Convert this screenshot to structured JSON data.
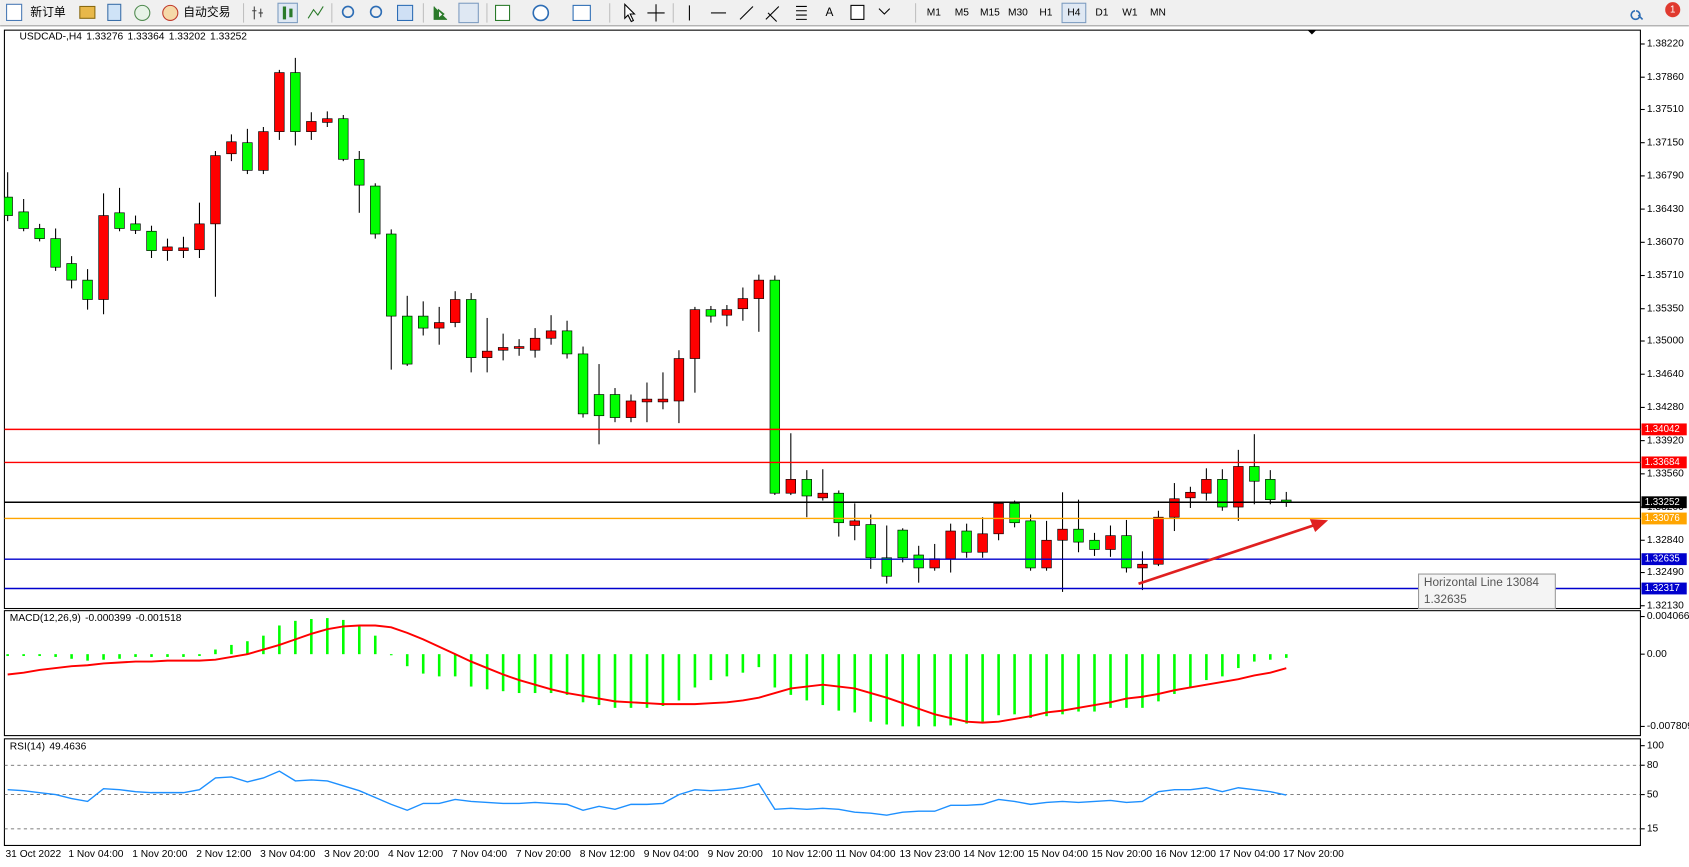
{
  "toolbar": {
    "new_order": "新订单",
    "auto_trading": "自动交易",
    "text_tool": "A",
    "periods": [
      "M1",
      "M5",
      "M15",
      "M30",
      "H1",
      "H4",
      "D1",
      "W1",
      "MN"
    ],
    "active_period": 5,
    "notification_count": 1
  },
  "tooltip": {
    "title": "Horizontal Line 13084",
    "value": 1.32635
  },
  "chart_data": [
    {
      "type": "candlestick",
      "title": "USDCAD-,H4",
      "header_values": [
        1.33276,
        1.33364,
        1.33202,
        1.33252
      ],
      "up_color": "#ff0000",
      "down_color": "#00ff00",
      "open": [
        1.3656,
        1.364,
        1.3622,
        1.3611,
        1.3584,
        1.3566,
        1.3545,
        1.3639,
        1.3627,
        1.3619,
        1.3598,
        1.3598,
        1.3599,
        1.3627,
        1.3703,
        1.3715,
        1.3685,
        1.3727,
        1.3791,
        1.3727,
        1.3737,
        1.3741,
        1.3697,
        1.3668,
        1.3616,
        1.3527,
        1.3527,
        1.3514,
        1.352,
        1.3545,
        1.3482,
        1.349,
        1.3492,
        1.349,
        1.3503,
        1.3511,
        1.3486,
        1.3442,
        1.3442,
        1.3417,
        1.3434,
        1.3434,
        1.3435,
        1.3481,
        1.3534,
        1.3528,
        1.3535,
        1.3546,
        1.3566,
        1.3335,
        1.335,
        1.333,
        1.3335,
        1.33,
        1.3301,
        1.3265,
        1.3295,
        1.3268,
        1.3254,
        1.3264,
        1.3294,
        1.3271,
        1.3291,
        1.3324,
        1.3305,
        1.3254,
        1.3284,
        1.3296,
        1.3284,
        1.3274,
        1.3289,
        1.3254,
        1.3258,
        1.3309,
        1.333,
        1.3335,
        1.335,
        1.332,
        1.3364,
        1.335,
        1.33276
      ],
      "high": [
        1.3683,
        1.3654,
        1.3627,
        1.3622,
        1.3592,
        1.3578,
        1.366,
        1.3666,
        1.3636,
        1.3625,
        1.3611,
        1.3613,
        1.365,
        1.3706,
        1.3724,
        1.373,
        1.3732,
        1.3794,
        1.3807,
        1.3748,
        1.3749,
        1.3745,
        1.3706,
        1.3671,
        1.3621,
        1.3549,
        1.3543,
        1.3537,
        1.3554,
        1.3552,
        1.3525,
        1.3508,
        1.3502,
        1.3514,
        1.3528,
        1.3522,
        1.3494,
        1.3475,
        1.3449,
        1.3442,
        1.3455,
        1.3466,
        1.349,
        1.3537,
        1.3538,
        1.3539,
        1.3558,
        1.3572,
        1.3571,
        1.34,
        1.336,
        1.3361,
        1.3338,
        1.3324,
        1.3312,
        1.33,
        1.3297,
        1.3278,
        1.328,
        1.3302,
        1.3302,
        1.3309,
        1.3326,
        1.3327,
        1.3312,
        1.3305,
        1.3336,
        1.3328,
        1.3292,
        1.33,
        1.3306,
        1.3272,
        1.3316,
        1.3346,
        1.3342,
        1.3362,
        1.3361,
        1.3382,
        1.3399,
        1.336,
        1.33364
      ],
      "low": [
        1.363,
        1.3619,
        1.3608,
        1.3576,
        1.3557,
        1.3534,
        1.3529,
        1.3619,
        1.3616,
        1.359,
        1.3587,
        1.359,
        1.359,
        1.3548,
        1.3695,
        1.3681,
        1.3681,
        1.3718,
        1.3712,
        1.3718,
        1.3732,
        1.3695,
        1.3639,
        1.3611,
        1.3469,
        1.3473,
        1.3506,
        1.3496,
        1.3515,
        1.3466,
        1.3466,
        1.3479,
        1.3484,
        1.3482,
        1.3496,
        1.3481,
        1.3417,
        1.3388,
        1.3412,
        1.3412,
        1.3412,
        1.3426,
        1.3411,
        1.3444,
        1.352,
        1.3516,
        1.3522,
        1.351,
        1.3333,
        1.3333,
        1.3309,
        1.3327,
        1.3288,
        1.3284,
        1.3253,
        1.3237,
        1.326,
        1.3238,
        1.3251,
        1.3249,
        1.3265,
        1.3265,
        1.3284,
        1.3298,
        1.3251,
        1.3251,
        1.3228,
        1.3271,
        1.3267,
        1.3266,
        1.3249,
        1.323,
        1.3256,
        1.3294,
        1.3319,
        1.3327,
        1.3316,
        1.3305,
        1.3323,
        1.3323,
        1.33202
      ],
      "close": [
        1.3636,
        1.3622,
        1.3611,
        1.358,
        1.3566,
        1.3545,
        1.3636,
        1.3622,
        1.362,
        1.3598,
        1.3602,
        1.3601,
        1.3627,
        1.3701,
        1.3716,
        1.3685,
        1.3727,
        1.3791,
        1.3727,
        1.3738,
        1.3741,
        1.3697,
        1.3669,
        1.3616,
        1.3527,
        1.3475,
        1.3514,
        1.352,
        1.3545,
        1.3482,
        1.3489,
        1.3493,
        1.3494,
        1.3503,
        1.3511,
        1.3486,
        1.3421,
        1.3419,
        1.3417,
        1.3435,
        1.3437,
        1.3437,
        1.3481,
        1.3534,
        1.3527,
        1.3534,
        1.3546,
        1.3566,
        1.3335,
        1.335,
        1.3332,
        1.3335,
        1.3303,
        1.3305,
        1.3265,
        1.3245,
        1.3265,
        1.3254,
        1.3264,
        1.3294,
        1.3271,
        1.3291,
        1.3324,
        1.3303,
        1.3254,
        1.3284,
        1.3296,
        1.3282,
        1.3274,
        1.3289,
        1.3254,
        1.3258,
        1.3309,
        1.3329,
        1.3336,
        1.335,
        1.332,
        1.3364,
        1.3348,
        1.3328,
        1.33252
      ],
      "ylim": [
        1.321,
        1.3837
      ],
      "yticks": [
        {
          "value": 1.3822,
          "label": "1.38220"
        },
        {
          "value": 1.3786,
          "label": "1.37860"
        },
        {
          "value": 1.3751,
          "label": "1.37510"
        },
        {
          "value": 1.3715,
          "label": "1.37150"
        },
        {
          "value": 1.3679,
          "label": "1.36790"
        },
        {
          "value": 1.3643,
          "label": "1.36430"
        },
        {
          "value": 1.3607,
          "label": "1.36070"
        },
        {
          "value": 1.3571,
          "label": "1.35710"
        },
        {
          "value": 1.3535,
          "label": "1.35350"
        },
        {
          "value": 1.35,
          "label": "1.35000"
        },
        {
          "value": 1.3464,
          "label": "1.34640"
        },
        {
          "value": 1.3428,
          "label": "1.34280"
        },
        {
          "value": 1.3392,
          "label": "1.33920"
        },
        {
          "value": 1.3356,
          "label": "1.33560"
        },
        {
          "value": 1.332,
          "label": "1.33200"
        },
        {
          "value": 1.3284,
          "label": "1.32840"
        },
        {
          "value": 1.3249,
          "label": "1.32490"
        },
        {
          "value": 1.3213,
          "label": "1.32130"
        }
      ],
      "hlines": [
        {
          "value": 1.34042,
          "color": "#ff0000"
        },
        {
          "value": 1.33684,
          "color": "#ff0000"
        },
        {
          "value": 1.33076,
          "color": "#ffa500"
        },
        {
          "value": 1.32635,
          "color": "#0000cd"
        },
        {
          "value": 1.32317,
          "color": "#0000cd"
        }
      ],
      "bid": {
        "value": 1.33252,
        "color": "#000000"
      },
      "x_labels": [
        "31 Oct 2022",
        "1 Nov 04:00",
        "1 Nov 20:00",
        "2 Nov 12:00",
        "3 Nov 04:00",
        "3 Nov 20:00",
        "4 Nov 12:00",
        "7 Nov 04:00",
        "7 Nov 20:00",
        "8 Nov 12:00",
        "9 Nov 04:00",
        "9 Nov 20:00",
        "10 Nov 12:00",
        "11 Nov 04:00",
        "13 Nov 23:00",
        "14 Nov 12:00",
        "15 Nov 04:00",
        "15 Nov 20:00",
        "16 Nov 12:00",
        "17 Nov 04:00",
        "17 Nov 20:00"
      ]
    },
    {
      "type": "macd",
      "title": "MACD(12,26,9)",
      "header_values": [
        -0.000399,
        -0.001518
      ],
      "color": "#00ff00",
      "signal_color": "#ff0000",
      "values": [
        -0.0002,
        -0.0002,
        -0.0002,
        -0.0003,
        -0.0005,
        -0.0007,
        -0.0006,
        -0.0005,
        -0.0003,
        -0.0003,
        -0.0003,
        -0.0003,
        -0.0002,
        0.0005,
        0.001,
        0.0014,
        0.002,
        0.0031,
        0.0036,
        0.0038,
        0.0039,
        0.0037,
        0.0031,
        0.002,
        0,
        -0.0013,
        -0.0021,
        -0.0024,
        -0.0024,
        -0.0035,
        -0.0038,
        -0.004,
        -0.0042,
        -0.0042,
        -0.0042,
        -0.0044,
        -0.0052,
        -0.0055,
        -0.0058,
        -0.0058,
        -0.0058,
        -0.0056,
        -0.005,
        -0.0036,
        -0.0028,
        -0.0024,
        -0.002,
        -0.0014,
        -0.0036,
        -0.0044,
        -0.005,
        -0.0055,
        -0.0061,
        -0.0063,
        -0.0073,
        -0.0076,
        -0.0078,
        -0.0078,
        -0.0078,
        -0.0077,
        -0.0075,
        -0.0073,
        -0.0066,
        -0.0065,
        -0.0069,
        -0.0067,
        -0.0065,
        -0.0062,
        -0.0062,
        -0.0058,
        -0.0058,
        -0.0058,
        -0.0051,
        -0.0043,
        -0.0036,
        -0.0028,
        -0.0024,
        -0.0015,
        -0.0008,
        -0.0006,
        -0.000399
      ],
      "signal": [
        -0.0022,
        -0.002,
        -0.0017,
        -0.0015,
        -0.0013,
        -0.0012,
        -0.001,
        -0.0009,
        -0.0008,
        -0.0008,
        -0.0007,
        -0.0007,
        -0.0007,
        -0.0006,
        -0.0003,
        0,
        0.0005,
        0.001,
        0.0016,
        0.0022,
        0.0027,
        0.003,
        0.0031,
        0.0031,
        0.0029,
        0.0023,
        0.0016,
        0.0008,
        0,
        -0.0008,
        -0.0015,
        -0.0022,
        -0.0028,
        -0.0033,
        -0.0038,
        -0.0042,
        -0.0045,
        -0.0048,
        -0.0051,
        -0.0052,
        -0.0053,
        -0.0054,
        -0.0054,
        -0.0054,
        -0.0053,
        -0.0052,
        -0.005,
        -0.0047,
        -0.0042,
        -0.0037,
        -0.0035,
        -0.0033,
        -0.0035,
        -0.0037,
        -0.0042,
        -0.0047,
        -0.0053,
        -0.0059,
        -0.0065,
        -0.0069,
        -0.0073,
        -0.0074,
        -0.0073,
        -0.007,
        -0.0067,
        -0.0063,
        -0.0061,
        -0.0058,
        -0.0055,
        -0.0052,
        -0.0048,
        -0.0046,
        -0.0043,
        -0.0039,
        -0.0036,
        -0.0033,
        -0.003,
        -0.0027,
        -0.0023,
        -0.002,
        -0.001518
      ],
      "ylim": [
        -0.0088,
        0.0047
      ],
      "yticks": [
        0.004066,
        {
          "value": 0,
          "label": "0.00"
        },
        -0.007809
      ]
    },
    {
      "type": "line",
      "title": "RSI(14)",
      "header_values": [
        49.4636
      ],
      "color": "#1e90ff",
      "values": [
        55,
        54,
        52,
        50,
        46,
        43,
        56,
        55,
        53,
        52,
        52,
        52,
        55,
        67,
        68,
        63,
        67,
        74,
        64,
        65,
        64,
        59,
        54,
        47,
        40,
        34,
        41,
        41,
        45,
        43,
        42,
        41,
        41,
        42,
        41,
        40,
        34,
        38,
        35,
        40,
        40,
        41,
        50,
        55,
        54,
        55,
        57,
        61,
        35,
        36,
        35,
        36,
        35,
        32,
        31,
        29,
        32,
        33,
        33,
        39,
        39,
        40,
        45,
        43,
        40,
        42,
        43,
        42,
        43,
        44,
        42,
        43,
        53,
        55,
        55,
        57,
        53,
        57,
        55,
        53,
        49.4636
      ],
      "ylim": [
        -2,
        107
      ],
      "yticks": [
        100,
        80,
        50,
        15
      ],
      "levels": [
        80,
        50,
        15
      ]
    }
  ]
}
